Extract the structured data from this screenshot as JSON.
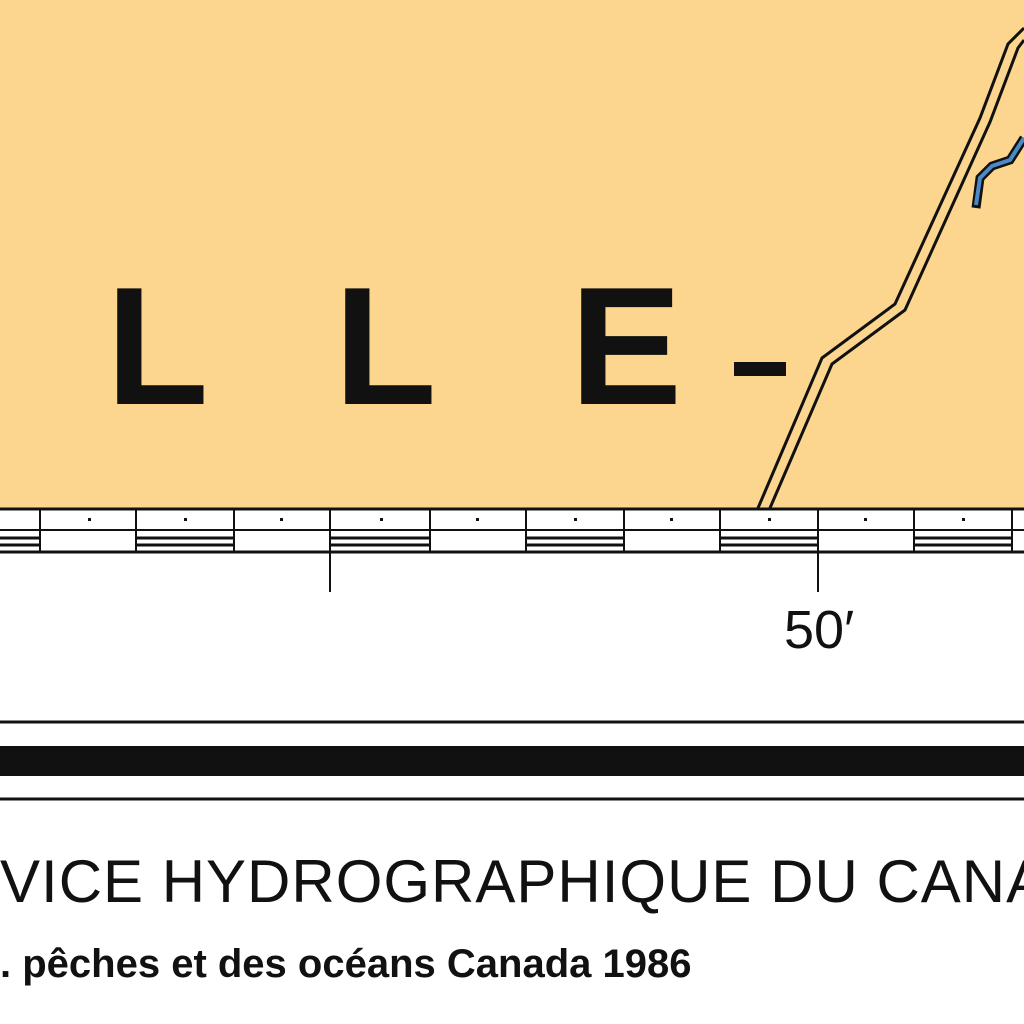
{
  "map": {
    "place_name_letters": [
      "L",
      "L",
      "E"
    ],
    "place_name_dash": "-",
    "longitude_tick_label": "50′",
    "agency_title": "VICE HYDROGRAPHIQUE DU CANA",
    "copyright_line": ". pêches et des océans Canada 1986"
  },
  "colors": {
    "land": "#fcd58e",
    "water": "#ffffff",
    "ink": "#111111",
    "river": "#4a8ac8"
  },
  "features": {
    "land_area": "land",
    "road": "double-line road",
    "river": "blue river segment",
    "border_scale": "alternating minute scale bar"
  }
}
